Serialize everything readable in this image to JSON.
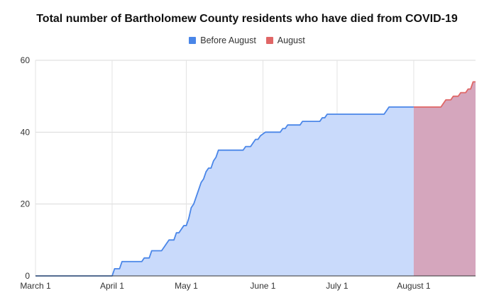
{
  "chart_data": {
    "type": "area",
    "title": "Total number of Bartholomew County residents who have died from COVID-19",
    "xlabel": "",
    "ylabel": "",
    "ylim": [
      0,
      60
    ],
    "y_ticks": [
      "0",
      "20",
      "40",
      "60"
    ],
    "x_ticks": [
      {
        "label": "March 1",
        "date": "2020-03-01"
      },
      {
        "label": "April 1",
        "date": "2020-04-01"
      },
      {
        "label": "May 1",
        "date": "2020-05-01"
      },
      {
        "label": "June 1",
        "date": "2020-06-01"
      },
      {
        "label": "July 1",
        "date": "2020-07-01"
      },
      {
        "label": "August 1",
        "date": "2020-08-01"
      }
    ],
    "x_range": [
      "2020-03-01",
      "2020-08-26"
    ],
    "grid": true,
    "legend_position": "top",
    "series": [
      {
        "name": "Before August",
        "color": "#4a86e8",
        "fill": "#c9dafb",
        "points": [
          [
            "2020-03-01",
            0
          ],
          [
            "2020-04-01",
            0
          ],
          [
            "2020-04-02",
            2
          ],
          [
            "2020-04-04",
            2
          ],
          [
            "2020-04-05",
            4
          ],
          [
            "2020-04-13",
            4
          ],
          [
            "2020-04-14",
            5
          ],
          [
            "2020-04-16",
            5
          ],
          [
            "2020-04-17",
            7
          ],
          [
            "2020-04-21",
            7
          ],
          [
            "2020-04-22",
            8
          ],
          [
            "2020-04-23",
            9
          ],
          [
            "2020-04-24",
            10
          ],
          [
            "2020-04-26",
            10
          ],
          [
            "2020-04-27",
            12
          ],
          [
            "2020-04-28",
            12
          ],
          [
            "2020-04-29",
            13
          ],
          [
            "2020-04-30",
            14
          ],
          [
            "2020-05-01",
            14
          ],
          [
            "2020-05-02",
            16
          ],
          [
            "2020-05-03",
            19
          ],
          [
            "2020-05-04",
            20
          ],
          [
            "2020-05-05",
            22
          ],
          [
            "2020-05-06",
            24
          ],
          [
            "2020-05-07",
            26
          ],
          [
            "2020-05-08",
            27
          ],
          [
            "2020-05-09",
            29
          ],
          [
            "2020-05-10",
            30
          ],
          [
            "2020-05-11",
            30
          ],
          [
            "2020-05-12",
            32
          ],
          [
            "2020-05-13",
            33
          ],
          [
            "2020-05-14",
            35
          ],
          [
            "2020-05-24",
            35
          ],
          [
            "2020-05-25",
            36
          ],
          [
            "2020-05-27",
            36
          ],
          [
            "2020-05-28",
            37
          ],
          [
            "2020-05-29",
            38
          ],
          [
            "2020-05-30",
            38
          ],
          [
            "2020-05-31",
            39
          ],
          [
            "2020-06-02",
            40
          ],
          [
            "2020-06-08",
            40
          ],
          [
            "2020-06-09",
            41
          ],
          [
            "2020-06-10",
            41
          ],
          [
            "2020-06-11",
            42
          ],
          [
            "2020-06-16",
            42
          ],
          [
            "2020-06-17",
            43
          ],
          [
            "2020-06-24",
            43
          ],
          [
            "2020-06-25",
            44
          ],
          [
            "2020-06-26",
            44
          ],
          [
            "2020-06-27",
            45
          ],
          [
            "2020-07-20",
            45
          ],
          [
            "2020-07-22",
            47
          ],
          [
            "2020-08-01",
            47
          ]
        ]
      },
      {
        "name": "August",
        "color": "#e06666",
        "fill": "#d5a6bd",
        "points": [
          [
            "2020-08-01",
            47
          ],
          [
            "2020-08-12",
            47
          ],
          [
            "2020-08-13",
            48
          ],
          [
            "2020-08-14",
            49
          ],
          [
            "2020-08-16",
            49
          ],
          [
            "2020-08-17",
            50
          ],
          [
            "2020-08-19",
            50
          ],
          [
            "2020-08-20",
            51
          ],
          [
            "2020-08-22",
            51
          ],
          [
            "2020-08-23",
            52
          ],
          [
            "2020-08-24",
            52
          ],
          [
            "2020-08-25",
            54
          ],
          [
            "2020-08-26",
            54
          ]
        ]
      }
    ]
  }
}
